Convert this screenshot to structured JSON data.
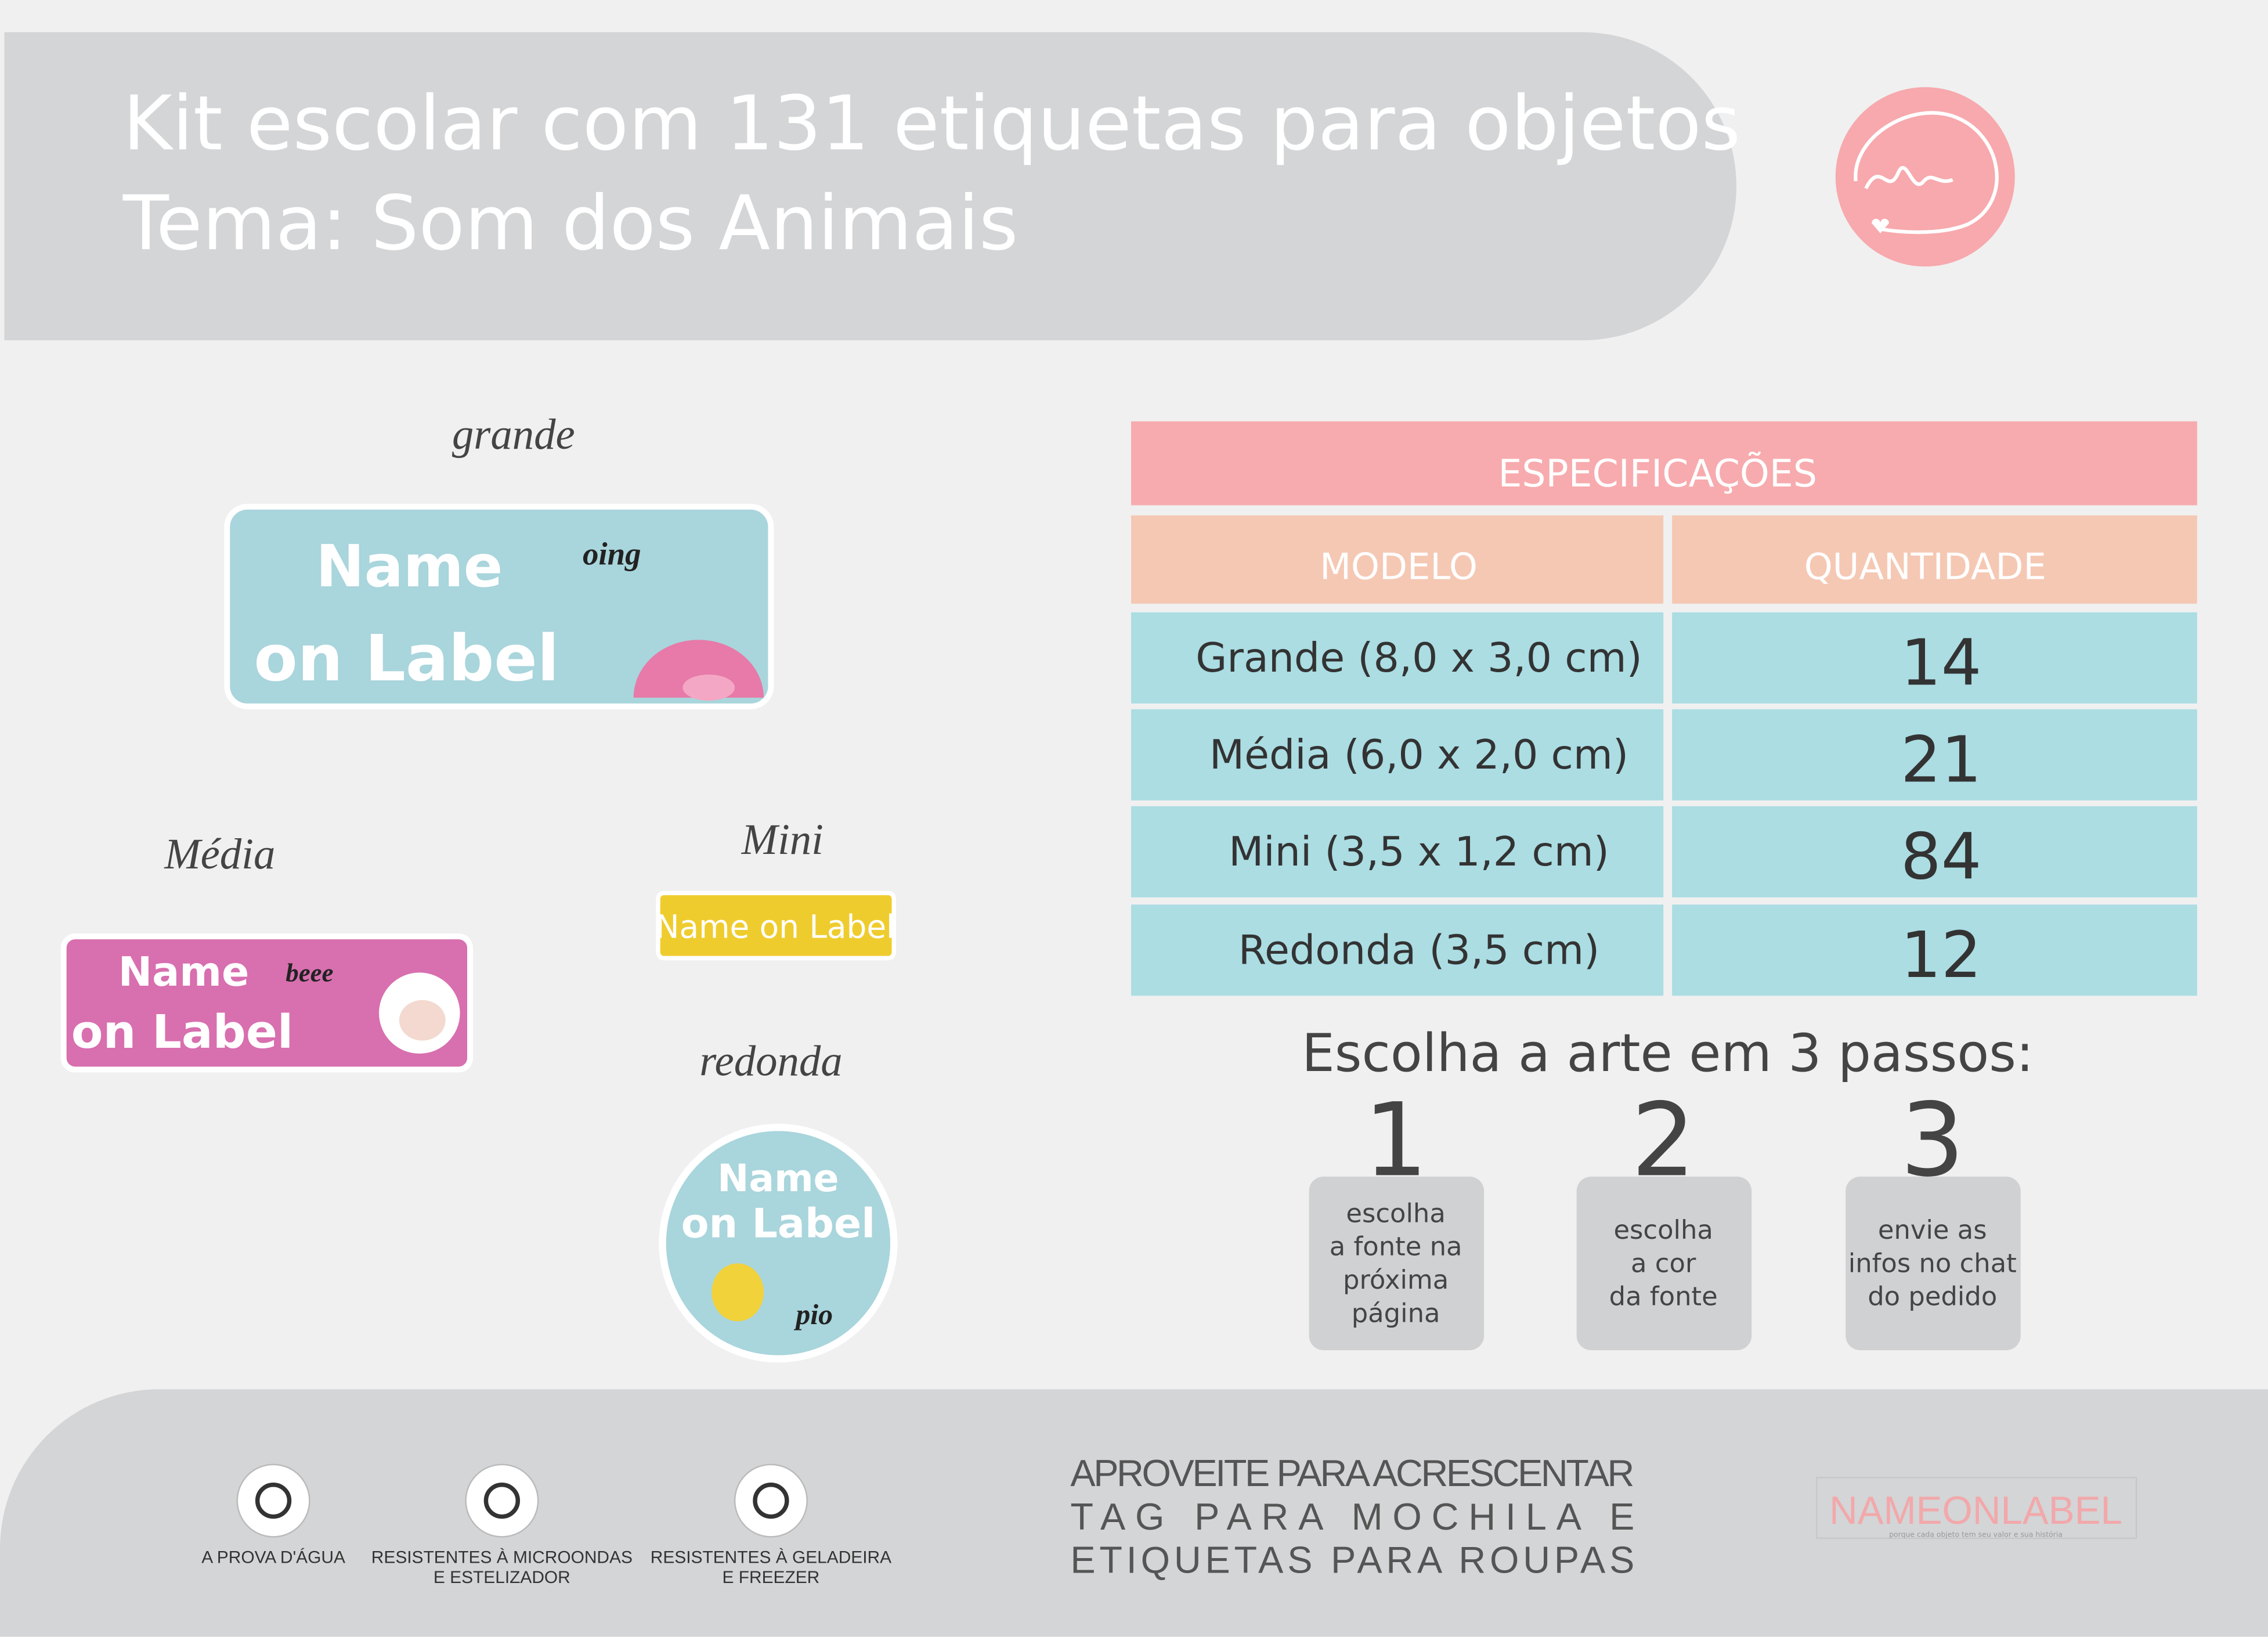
{
  "header": {
    "title_lines": [
      "Kit escolar com 131 etiquetas para objetos",
      "Tema: Som dos Animais"
    ]
  },
  "samples": {
    "grande": {
      "caption": "grande",
      "texts": [
        "Name",
        "on Label",
        "oing"
      ]
    },
    "media": {
      "caption": "Média",
      "texts": [
        "Name",
        "on Label",
        "beee"
      ]
    },
    "mini": {
      "caption": "Mini",
      "texts": [
        "Name on Label"
      ]
    },
    "redonda": {
      "caption": "redonda",
      "texts": [
        "Name",
        "on Label",
        "pio"
      ]
    }
  },
  "table": {
    "title": "ESPECIFICAÇÕES",
    "headers": [
      "MODELO",
      "QUANTIDADE"
    ],
    "rows": [
      [
        "Grande (8,0 x 3,0 cm)",
        14
      ],
      [
        "Média (6,0 x 2,0 cm)",
        21
      ],
      [
        "Mini (3,5 x 1,2 cm)",
        84
      ],
      [
        "Redonda (3,5 cm)",
        12
      ]
    ]
  },
  "steps": {
    "title": "Escolha a arte em 3 passos:",
    "items": [
      {
        "number": 1,
        "lines": [
          "escolha",
          "a fonte na",
          "próxima",
          "página"
        ]
      },
      {
        "number": 2,
        "lines": [
          "escolha",
          "a cor",
          "da fonte"
        ]
      },
      {
        "number": 3,
        "lines": [
          "envie as",
          "infos no chat",
          "do pedido"
        ]
      }
    ]
  },
  "features": [
    [
      "A PROVA D'ÁGUA"
    ],
    [
      "RESISTENTES À MICROONDAS",
      "E ESTELIZADOR"
    ],
    [
      "RESISTENTES À GELADEIRA",
      "E FREEZER"
    ]
  ],
  "promo": [
    "APROVEITE PARA ACRESCENTAR",
    "TAG PARA MOCHILA E",
    "ETIQUETAS PARA ROUPAS"
  ],
  "brand": {
    "name": "NAMEONLABEL",
    "tagline": "porque cada objeto tem seu valor e sua história"
  }
}
